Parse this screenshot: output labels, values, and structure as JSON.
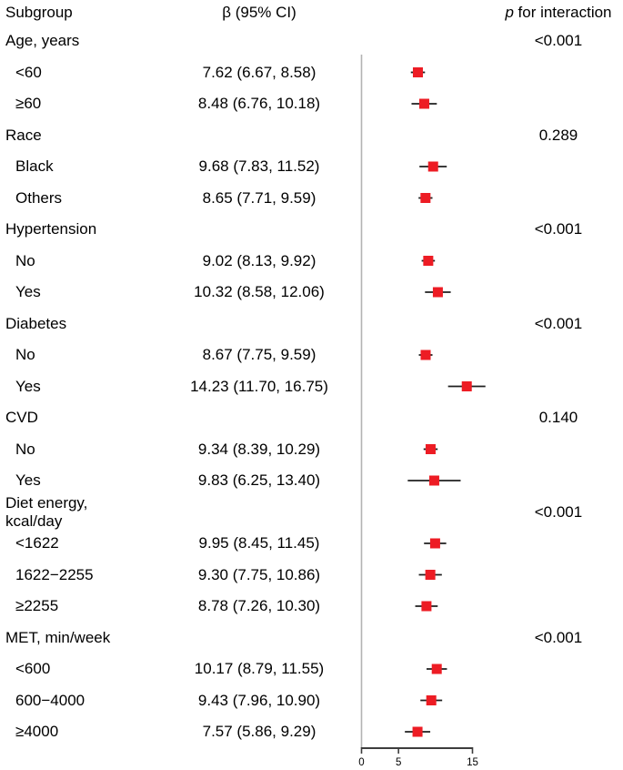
{
  "header": {
    "subgroup": "Subgroup",
    "beta_ci": "β (95% CI)",
    "p_italic": "p",
    "p_rest": "for interaction"
  },
  "colors": {
    "marker": "#ed1c24",
    "ci_line": "#1f1f1f",
    "ref_line": "#b3b3b3",
    "axis": "#3d3d3d",
    "text": "#000000"
  },
  "chart_data": {
    "type": "forest",
    "value_label": "β (95% CI)",
    "axis": {
      "min": 0,
      "max": 15,
      "ticks": [
        0,
        5,
        15
      ],
      "ref_line": 0,
      "grid": false
    },
    "rows": [
      {
        "type": "group",
        "label": "Age, years",
        "p": "<0.001"
      },
      {
        "type": "item",
        "label": "<60",
        "ci_text": "7.62 (6.67, 8.58)",
        "beta": 7.62,
        "lo": 6.67,
        "hi": 8.58
      },
      {
        "type": "item",
        "label": "≥60",
        "ci_text": "8.48 (6.76, 10.18)",
        "beta": 8.48,
        "lo": 6.76,
        "hi": 10.18
      },
      {
        "type": "group",
        "label": "Race",
        "p": "0.289"
      },
      {
        "type": "item",
        "label": "Black",
        "ci_text": "9.68 (7.83, 11.52)",
        "beta": 9.68,
        "lo": 7.83,
        "hi": 11.52
      },
      {
        "type": "item",
        "label": "Others",
        "ci_text": "8.65 (7.71, 9.59)",
        "beta": 8.65,
        "lo": 7.71,
        "hi": 9.59
      },
      {
        "type": "group",
        "label": "Hypertension",
        "p": "<0.001"
      },
      {
        "type": "item",
        "label": "No",
        "ci_text": "9.02 (8.13, 9.92)",
        "beta": 9.02,
        "lo": 8.13,
        "hi": 9.92
      },
      {
        "type": "item",
        "label": "Yes",
        "ci_text": "10.32 (8.58, 12.06)",
        "beta": 10.32,
        "lo": 8.58,
        "hi": 12.06
      },
      {
        "type": "group",
        "label": "Diabetes",
        "p": "<0.001"
      },
      {
        "type": "item",
        "label": "No",
        "ci_text": "8.67 (7.75, 9.59)",
        "beta": 8.67,
        "lo": 7.75,
        "hi": 9.59
      },
      {
        "type": "item",
        "label": "Yes",
        "ci_text": "14.23 (11.70, 16.75)",
        "beta": 14.23,
        "lo": 11.7,
        "hi": 16.75
      },
      {
        "type": "group",
        "label": "CVD",
        "p": "0.140"
      },
      {
        "type": "item",
        "label": "No",
        "ci_text": "9.34 (8.39, 10.29)",
        "beta": 9.34,
        "lo": 8.39,
        "hi": 10.29
      },
      {
        "type": "item",
        "label": "Yes",
        "ci_text": "9.83 (6.25, 13.40)",
        "beta": 9.83,
        "lo": 6.25,
        "hi": 13.4
      },
      {
        "type": "group",
        "label": "Diet energy, kcal/day",
        "p": "<0.001"
      },
      {
        "type": "item",
        "label": "<1622",
        "ci_text": "9.95 (8.45, 11.45)",
        "beta": 9.95,
        "lo": 8.45,
        "hi": 11.45
      },
      {
        "type": "item",
        "label": "1622−2255",
        "ci_text": "9.30 (7.75, 10.86)",
        "beta": 9.3,
        "lo": 7.75,
        "hi": 10.86
      },
      {
        "type": "item",
        "label": "≥2255",
        "ci_text": "8.78 (7.26, 10.30)",
        "beta": 8.78,
        "lo": 7.26,
        "hi": 10.3
      },
      {
        "type": "group",
        "label": "MET, min/week",
        "p": "<0.001"
      },
      {
        "type": "item",
        "label": "<600",
        "ci_text": "10.17 (8.79, 11.55)",
        "beta": 10.17,
        "lo": 8.79,
        "hi": 11.55
      },
      {
        "type": "item",
        "label": "600−4000",
        "ci_text": "9.43 (7.96, 10.90)",
        "beta": 9.43,
        "lo": 7.96,
        "hi": 10.9
      },
      {
        "type": "item",
        "label": "≥4000",
        "ci_text": "7.57 (5.86, 9.29)",
        "beta": 7.57,
        "lo": 5.86,
        "hi": 9.29
      }
    ]
  }
}
